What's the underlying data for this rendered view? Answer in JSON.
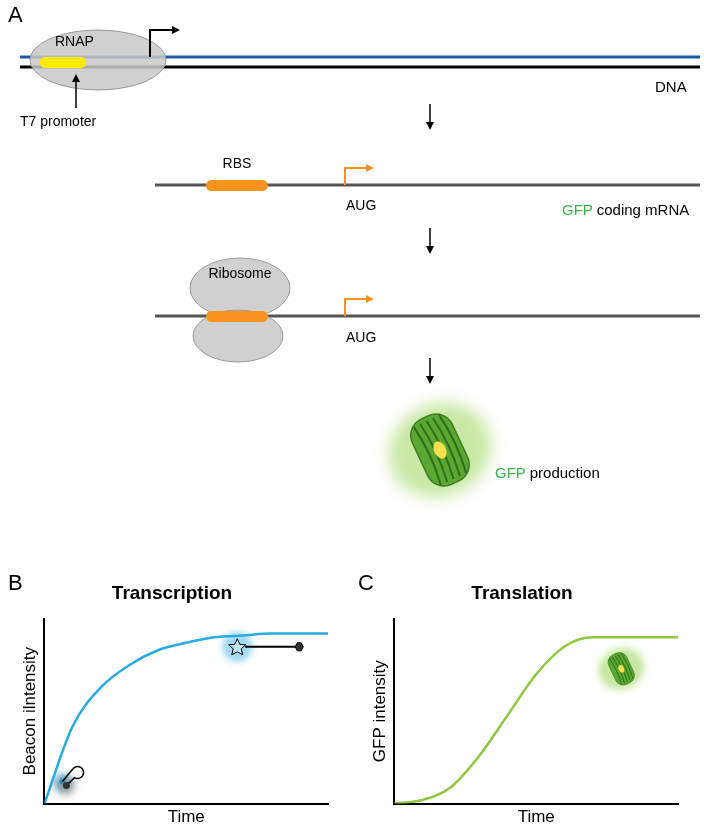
{
  "diagram": {
    "panel_labels": [
      "A",
      "B",
      "C"
    ],
    "dna": {
      "polymerase": "RNAP",
      "promoter": "T7 promoter",
      "strand": "DNA"
    },
    "mrna": {
      "rbs": "RBS",
      "start_codon": "AUG",
      "label": [
        "GFP",
        "coding mRNA"
      ]
    },
    "translation": {
      "ribosome": "Ribosome",
      "rbs": "RBS",
      "start_codon": "AUG"
    },
    "product": {
      "label": [
        "GFP",
        "production"
      ]
    }
  },
  "chart_data": [
    {
      "type": "line",
      "title": "Transcription",
      "x_label": "Time",
      "y_label": "Beacon ilntensity",
      "x": [
        0,
        1,
        2,
        3,
        4,
        5,
        6,
        7,
        8,
        9,
        10
      ],
      "values": [
        0,
        0.42,
        0.63,
        0.75,
        0.83,
        0.87,
        0.9,
        0.91,
        0.92,
        0.92,
        0.92
      ],
      "color": "#29abe2",
      "xlim": [
        0,
        10
      ],
      "ylim": [
        0,
        1
      ],
      "grid": false,
      "tick_labels": false
    },
    {
      "type": "line",
      "title": "Translation",
      "x_label": "Time",
      "y_label": "GFP intensity",
      "x": [
        0,
        1,
        2,
        3,
        4,
        5,
        6,
        7,
        8,
        9,
        10
      ],
      "values": [
        0,
        0.02,
        0.09,
        0.26,
        0.48,
        0.7,
        0.85,
        0.9,
        0.9,
        0.9,
        0.9
      ],
      "color": "#8dc63f",
      "xlim": [
        0,
        10
      ],
      "ylim": [
        0,
        1
      ],
      "grid": false,
      "tick_labels": false
    }
  ]
}
